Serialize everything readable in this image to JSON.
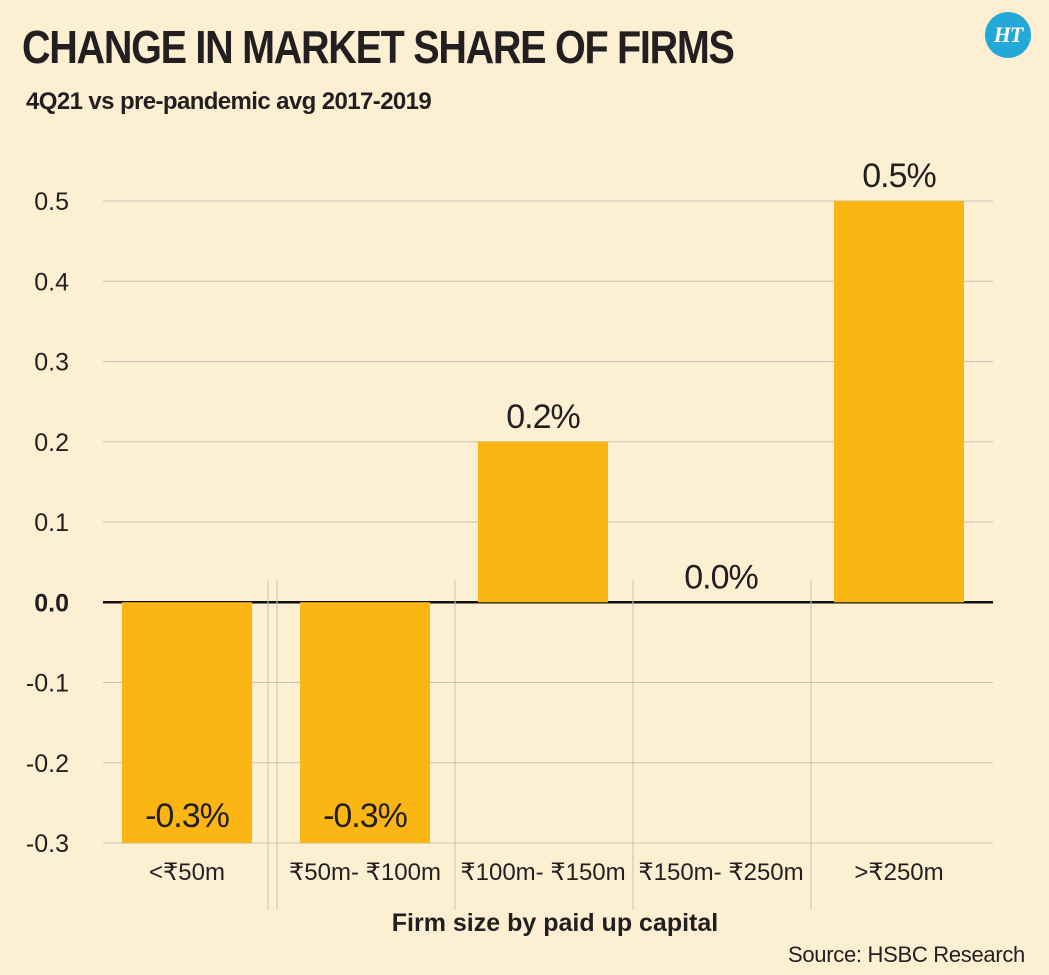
{
  "header": {
    "title": "CHANGE IN MARKET SHARE OF FIRMS",
    "subtitle": "4Q21 vs pre-pandemic avg 2017-2019",
    "logo_text": "HT"
  },
  "footer": {
    "source": "Source: HSBC Research"
  },
  "colors": {
    "background": "#fdf0d2",
    "bar": "#fbb614",
    "gridline": "#c8c2b6",
    "zero_line": "#111111",
    "text": "#231f20",
    "logo_bg": "#23a9d8"
  },
  "chart_data": {
    "type": "bar",
    "categories": [
      "<₹50m",
      "₹50m- ₹100m",
      "₹100m- ₹150m",
      "₹150m- ₹250m",
      ">₹250m"
    ],
    "values": [
      -0.3,
      -0.3,
      0.2,
      0.0,
      0.5
    ],
    "data_labels": [
      "-0.3%",
      "-0.3%",
      "0.2%",
      "0.0%",
      "0.5%"
    ],
    "xlabel": "Firm size by paid up capital",
    "ylabel": "",
    "ylim": [
      -0.3,
      0.5
    ],
    "yticks": [
      0.5,
      0.4,
      0.3,
      0.2,
      0.1,
      0.0,
      -0.1,
      -0.2,
      -0.3
    ],
    "ytick_labels": [
      "0.5",
      "0.4",
      "0.3",
      "0.2",
      "0.1",
      "0.0",
      "-0.1",
      "-0.2",
      "-0.3"
    ],
    "grid": true,
    "legend": "none"
  }
}
